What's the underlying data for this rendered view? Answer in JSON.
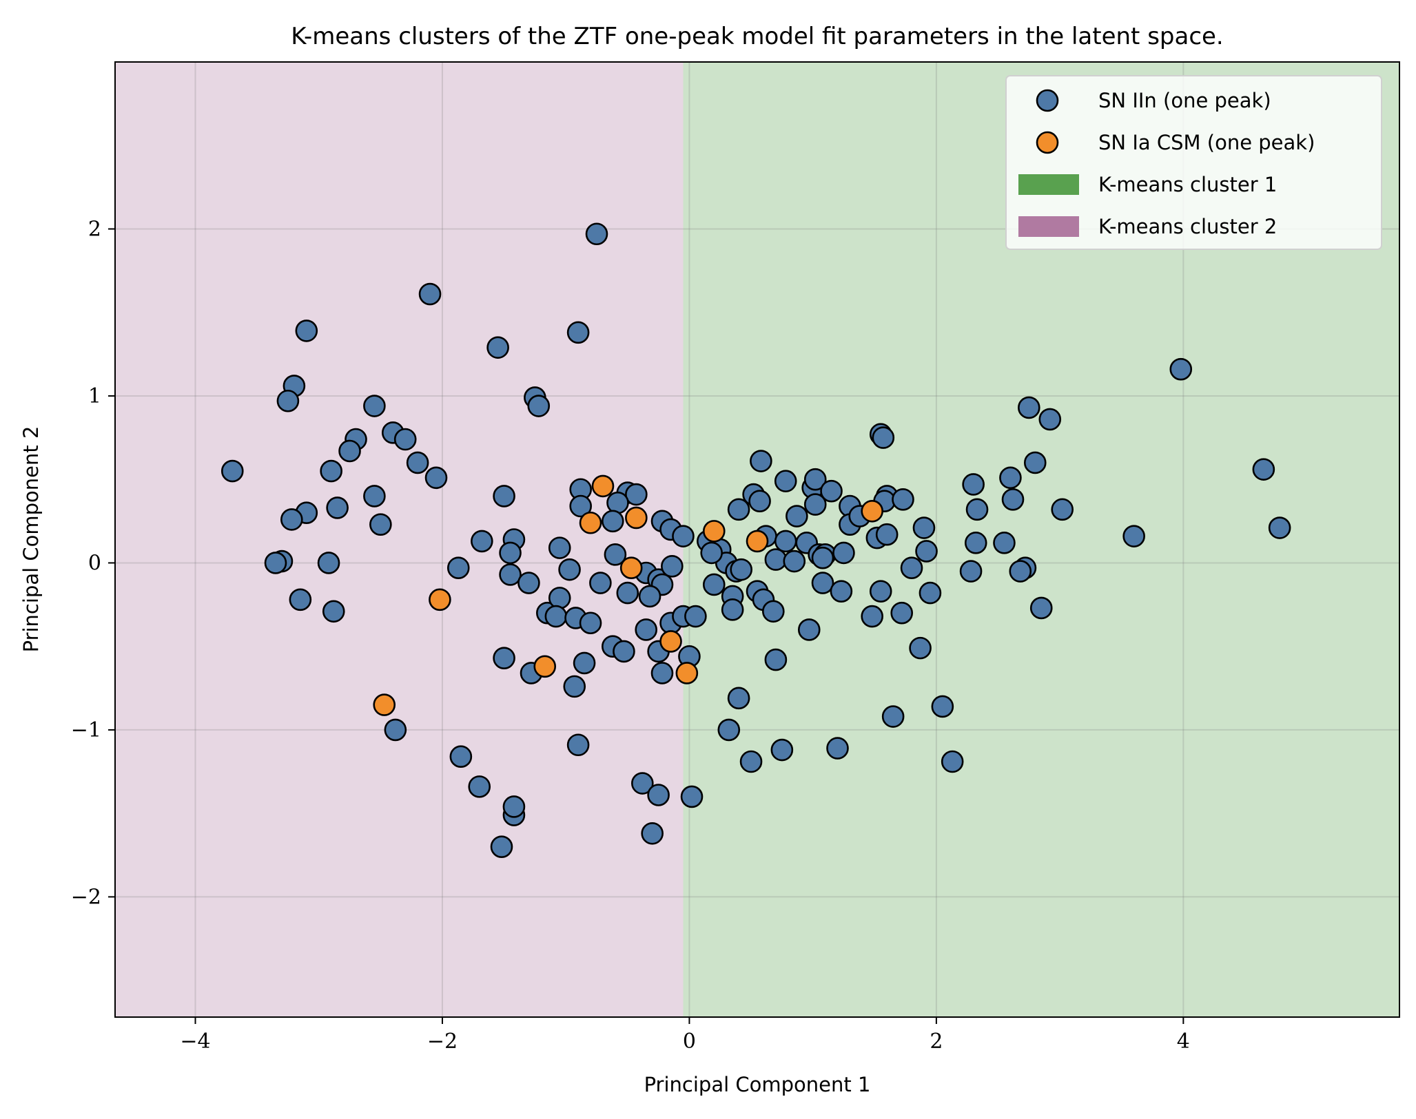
{
  "chart_data": {
    "type": "scatter",
    "title": "K-means clusters of the ZTF one-peak model fit parameters in the latent space.",
    "xlabel": "Principal Component 1",
    "ylabel": "Principal Component 2",
    "xlim": [
      -4.65,
      5.75
    ],
    "ylim": [
      -2.72,
      3.0
    ],
    "xticks": [
      -4,
      -2,
      0,
      2,
      4
    ],
    "xtick_labels": [
      "−4",
      "−2",
      "0",
      "2",
      "4"
    ],
    "yticks": [
      -2,
      -1,
      0,
      1,
      2
    ],
    "ytick_labels": [
      "−2",
      "−1",
      "0",
      "1",
      "2"
    ],
    "grid": true,
    "legend_position": "top-right",
    "regions": [
      {
        "name": "K-means cluster 2",
        "color": "#b07aa1",
        "x_range": [
          -4.65,
          -0.05
        ]
      },
      {
        "name": "K-means cluster 1",
        "color": "#59a14f",
        "x_range": [
          -0.05,
          5.75
        ]
      }
    ],
    "legend": [
      {
        "label": "SN IIn (one peak)",
        "kind": "marker",
        "color": "#4e79a7"
      },
      {
        "label": "SN Ia CSM (one peak)",
        "kind": "marker",
        "color": "#f28e2b"
      },
      {
        "label": "K-means cluster 1",
        "kind": "patch",
        "color": "#59a14f"
      },
      {
        "label": "K-means cluster 2",
        "kind": "patch",
        "color": "#b07aa1"
      }
    ],
    "series": [
      {
        "name": "SN IIn (one peak)",
        "color": "#4e79a7",
        "points": [
          [
            -0.75,
            1.97
          ],
          [
            -2.1,
            1.61
          ],
          [
            -3.1,
            1.39
          ],
          [
            -1.55,
            1.29
          ],
          [
            -0.9,
            1.38
          ],
          [
            -3.2,
            1.06
          ],
          [
            -3.25,
            0.97
          ],
          [
            -1.25,
            0.99
          ],
          [
            -1.22,
            0.94
          ],
          [
            -2.55,
            0.94
          ],
          [
            -2.4,
            0.78
          ],
          [
            -2.3,
            0.74
          ],
          [
            -2.7,
            0.74
          ],
          [
            -2.75,
            0.67
          ],
          [
            -3.7,
            0.55
          ],
          [
            -2.9,
            0.55
          ],
          [
            -2.2,
            0.6
          ],
          [
            -2.05,
            0.51
          ],
          [
            -1.5,
            0.4
          ],
          [
            -2.55,
            0.4
          ],
          [
            -2.85,
            0.33
          ],
          [
            -3.1,
            0.3
          ],
          [
            -3.22,
            0.26
          ],
          [
            -2.5,
            0.23
          ],
          [
            -0.88,
            0.44
          ],
          [
            -0.88,
            0.34
          ],
          [
            -0.5,
            0.42
          ],
          [
            -0.43,
            0.41
          ],
          [
            -0.58,
            0.36
          ],
          [
            -0.62,
            0.25
          ],
          [
            -1.68,
            0.13
          ],
          [
            -1.42,
            0.14
          ],
          [
            -1.45,
            0.06
          ],
          [
            -1.05,
            0.09
          ],
          [
            -0.6,
            0.05
          ],
          [
            -0.22,
            0.25
          ],
          [
            -0.15,
            0.2
          ],
          [
            -0.05,
            0.16
          ],
          [
            -3.3,
            0.01
          ],
          [
            -3.35,
            0.0
          ],
          [
            -2.92,
            0.0
          ],
          [
            -1.87,
            -0.03
          ],
          [
            -1.45,
            -0.07
          ],
          [
            -1.3,
            -0.12
          ],
          [
            -0.97,
            -0.04
          ],
          [
            -0.72,
            -0.12
          ],
          [
            -0.5,
            -0.18
          ],
          [
            -0.35,
            -0.06
          ],
          [
            -0.25,
            -0.1
          ],
          [
            -0.22,
            -0.13
          ],
          [
            -0.32,
            -0.2
          ],
          [
            -0.14,
            -0.02
          ],
          [
            -3.15,
            -0.22
          ],
          [
            -2.88,
            -0.29
          ],
          [
            -1.15,
            -0.3
          ],
          [
            -1.05,
            -0.21
          ],
          [
            -1.08,
            -0.32
          ],
          [
            -0.92,
            -0.33
          ],
          [
            -0.8,
            -0.36
          ],
          [
            -0.35,
            -0.4
          ],
          [
            -0.15,
            -0.36
          ],
          [
            -0.05,
            -0.32
          ],
          [
            0.05,
            -0.32
          ],
          [
            0.0,
            -0.56
          ],
          [
            -0.25,
            -0.53
          ],
          [
            -0.62,
            -0.5
          ],
          [
            -0.53,
            -0.53
          ],
          [
            -0.85,
            -0.6
          ],
          [
            -1.5,
            -0.57
          ],
          [
            -1.28,
            -0.66
          ],
          [
            -0.93,
            -0.74
          ],
          [
            -0.22,
            -0.66
          ],
          [
            -2.38,
            -1.0
          ],
          [
            -0.9,
            -1.09
          ],
          [
            -1.85,
            -1.16
          ],
          [
            -1.7,
            -1.34
          ],
          [
            -1.42,
            -1.51
          ],
          [
            -1.42,
            -1.46
          ],
          [
            -0.38,
            -1.32
          ],
          [
            -0.25,
            -1.39
          ],
          [
            -0.3,
            -1.62
          ],
          [
            -1.52,
            -1.7
          ],
          [
            0.02,
            -1.4
          ],
          [
            0.58,
            0.61
          ],
          [
            0.52,
            0.41
          ],
          [
            0.57,
            0.37
          ],
          [
            0.4,
            0.32
          ],
          [
            0.78,
            0.49
          ],
          [
            1.0,
            0.45
          ],
          [
            1.02,
            0.5
          ],
          [
            1.02,
            0.35
          ],
          [
            1.15,
            0.43
          ],
          [
            1.3,
            0.34
          ],
          [
            1.3,
            0.23
          ],
          [
            1.38,
            0.28
          ],
          [
            1.55,
            0.77
          ],
          [
            1.57,
            0.75
          ],
          [
            1.6,
            0.4
          ],
          [
            1.58,
            0.37
          ],
          [
            1.73,
            0.38
          ],
          [
            0.62,
            0.16
          ],
          [
            0.78,
            0.13
          ],
          [
            0.87,
            0.28
          ],
          [
            0.95,
            0.12
          ],
          [
            1.05,
            0.05
          ],
          [
            1.1,
            0.05
          ],
          [
            1.08,
            0.03
          ],
          [
            1.25,
            0.06
          ],
          [
            1.52,
            0.15
          ],
          [
            1.6,
            0.17
          ],
          [
            0.15,
            0.13
          ],
          [
            0.25,
            0.08
          ],
          [
            0.3,
            0.0
          ],
          [
            0.18,
            0.06
          ],
          [
            0.38,
            -0.05
          ],
          [
            0.42,
            -0.04
          ],
          [
            0.2,
            -0.13
          ],
          [
            0.35,
            -0.2
          ],
          [
            0.55,
            -0.17
          ],
          [
            0.6,
            -0.22
          ],
          [
            0.7,
            0.02
          ],
          [
            0.85,
            0.01
          ],
          [
            1.08,
            -0.12
          ],
          [
            1.23,
            -0.17
          ],
          [
            1.55,
            -0.17
          ],
          [
            0.68,
            -0.29
          ],
          [
            0.35,
            -0.28
          ],
          [
            0.97,
            -0.4
          ],
          [
            1.48,
            -0.32
          ],
          [
            1.72,
            -0.3
          ],
          [
            0.7,
            -0.58
          ],
          [
            0.4,
            -0.81
          ],
          [
            0.32,
            -1.0
          ],
          [
            0.75,
            -1.12
          ],
          [
            0.5,
            -1.19
          ],
          [
            1.2,
            -1.11
          ],
          [
            1.65,
            -0.92
          ],
          [
            1.9,
            0.21
          ],
          [
            1.92,
            0.07
          ],
          [
            1.8,
            -0.03
          ],
          [
            1.95,
            -0.18
          ],
          [
            1.87,
            -0.51
          ],
          [
            2.3,
            0.47
          ],
          [
            2.33,
            0.32
          ],
          [
            2.32,
            0.12
          ],
          [
            2.28,
            -0.05
          ],
          [
            2.55,
            0.12
          ],
          [
            2.6,
            0.51
          ],
          [
            2.62,
            0.38
          ],
          [
            2.8,
            0.6
          ],
          [
            2.75,
            0.93
          ],
          [
            2.92,
            0.86
          ],
          [
            3.02,
            0.32
          ],
          [
            2.72,
            -0.03
          ],
          [
            2.68,
            -0.05
          ],
          [
            2.85,
            -0.27
          ],
          [
            2.05,
            -0.86
          ],
          [
            2.13,
            -1.19
          ],
          [
            3.6,
            0.16
          ],
          [
            3.98,
            1.16
          ],
          [
            4.65,
            0.56
          ],
          [
            4.78,
            0.21
          ]
        ]
      },
      {
        "name": "SN Ia CSM (one peak)",
        "color": "#f28e2b",
        "points": [
          [
            -0.7,
            0.46
          ],
          [
            -0.43,
            0.27
          ],
          [
            -0.8,
            0.24
          ],
          [
            0.2,
            0.19
          ],
          [
            0.55,
            0.13
          ],
          [
            1.48,
            0.31
          ],
          [
            -0.47,
            -0.03
          ],
          [
            -2.02,
            -0.22
          ],
          [
            -1.17,
            -0.62
          ],
          [
            -0.15,
            -0.47
          ],
          [
            -0.02,
            -0.66
          ],
          [
            -2.47,
            -0.85
          ]
        ]
      }
    ]
  }
}
